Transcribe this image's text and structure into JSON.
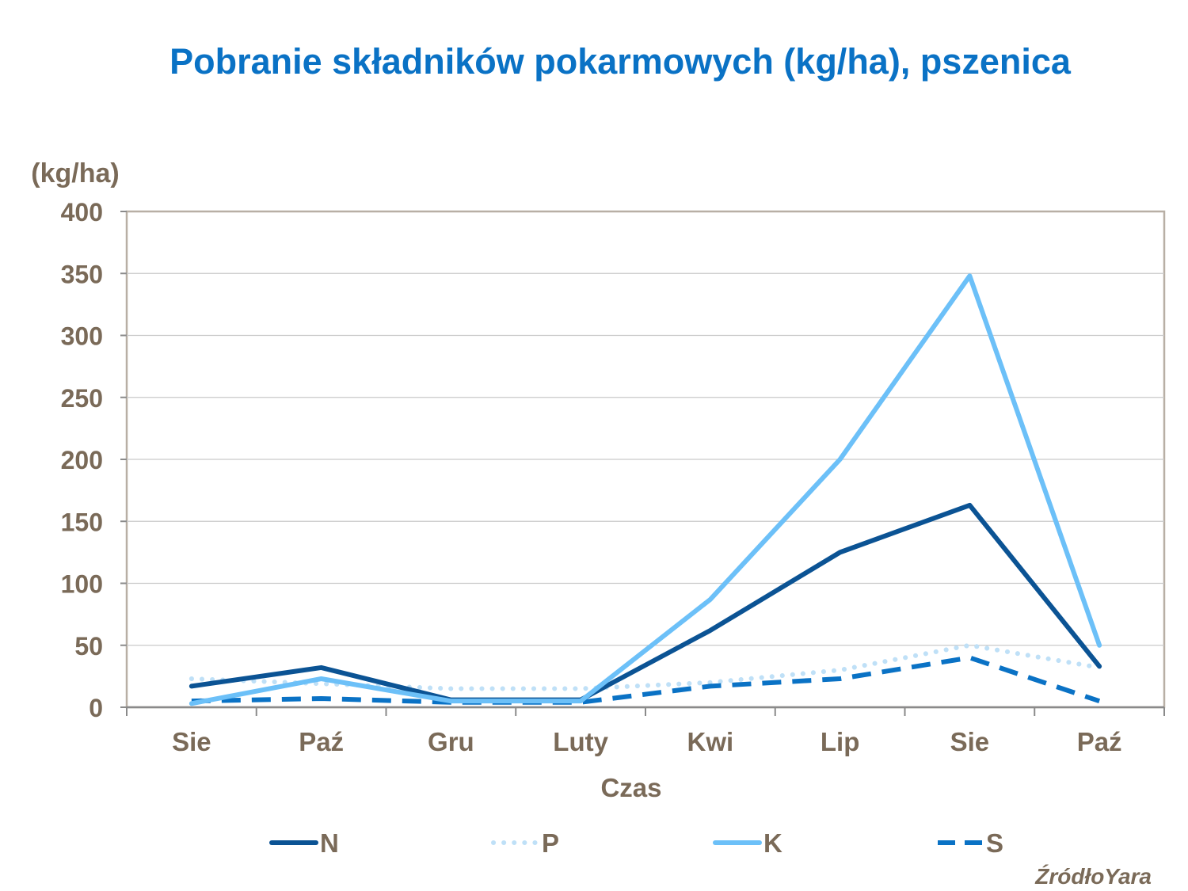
{
  "chart_data": {
    "type": "line",
    "title": "Pobranie składników pokarmowych (kg/ha), pszenica",
    "ylabel": "(kg/ha)",
    "xlabel": "Czas",
    "categories": [
      "Sie",
      "Paź",
      "Gru",
      "Luty",
      "Kwi",
      "Lip",
      "Sie",
      "Paź"
    ],
    "ylim": [
      0,
      400
    ],
    "yticks": [
      0,
      50,
      100,
      150,
      200,
      250,
      300,
      350,
      400
    ],
    "grid": true,
    "legend_position": "bottom",
    "series": [
      {
        "name": "N",
        "color": "#0B5394",
        "style": "solid",
        "values": [
          17,
          32,
          6,
          6,
          62,
          125,
          163,
          33
        ]
      },
      {
        "name": "P",
        "color": "#BFE0F7",
        "style": "dotted",
        "values": [
          23,
          19,
          15,
          15,
          20,
          30,
          50,
          32
        ]
      },
      {
        "name": "K",
        "color": "#6CC0F8",
        "style": "solid",
        "values": [
          3,
          23,
          5,
          5,
          87,
          200,
          348,
          50
        ]
      },
      {
        "name": "S",
        "color": "#0A72C5",
        "style": "dashed",
        "values": [
          5,
          7,
          4,
          4,
          17,
          23,
          40,
          5
        ]
      }
    ]
  },
  "source": "ŹródłoYara"
}
